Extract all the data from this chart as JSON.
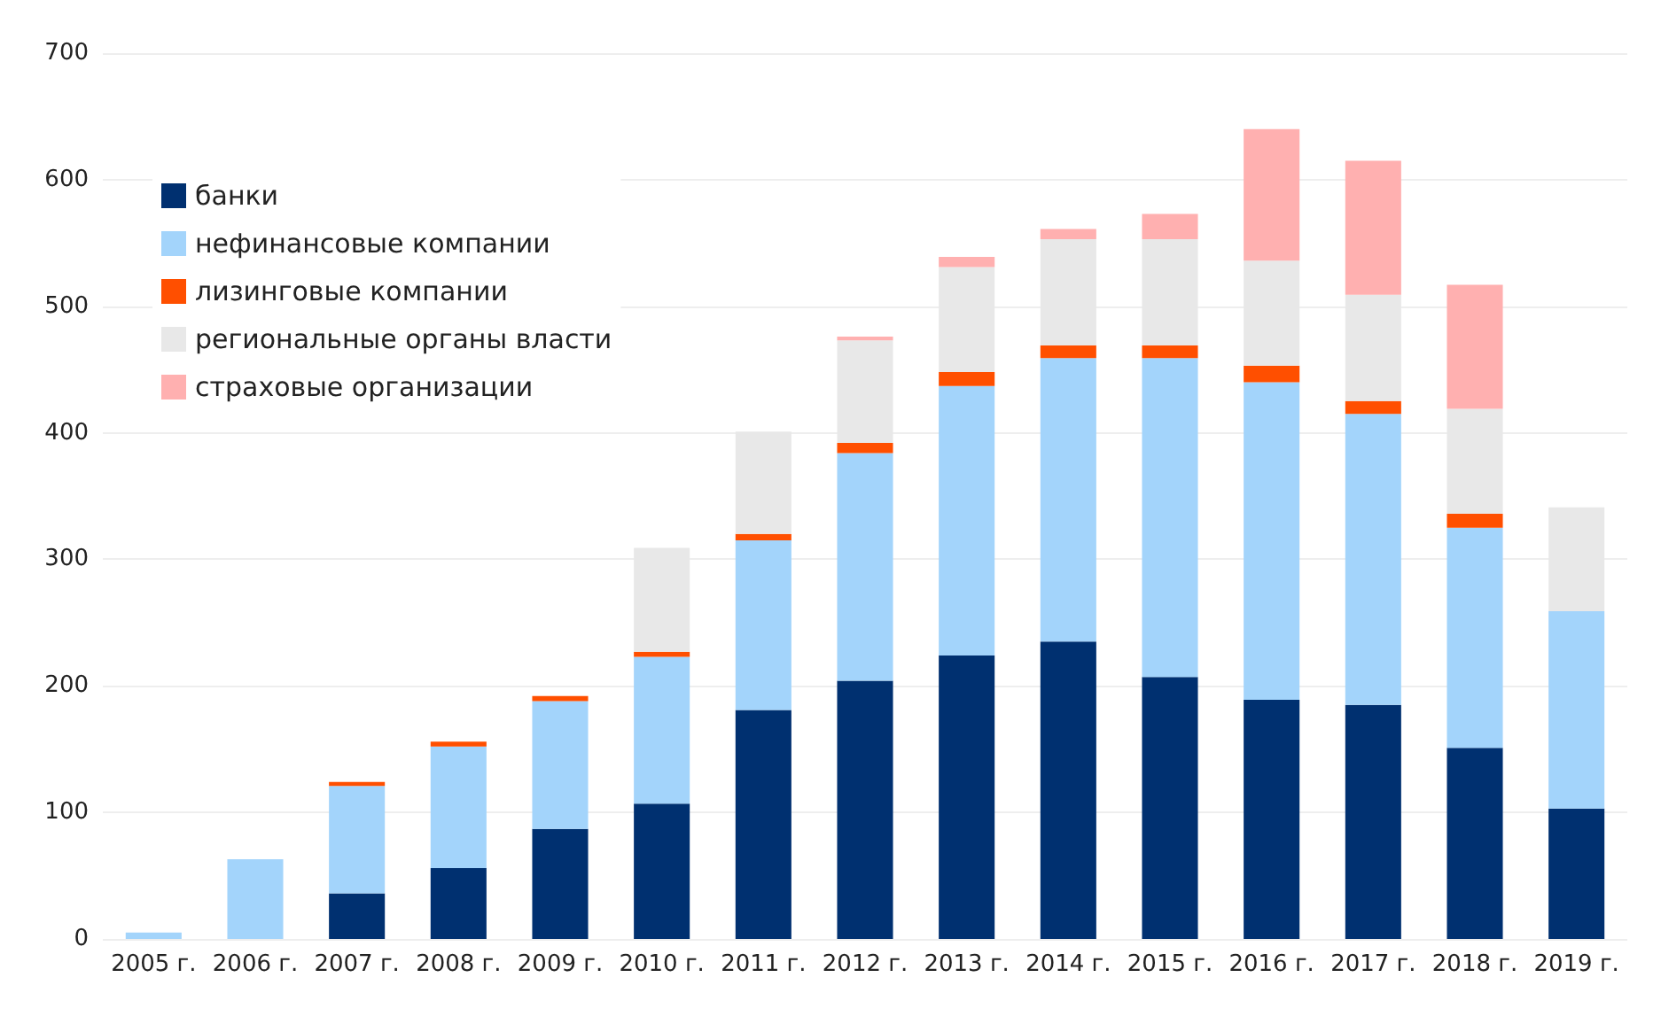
{
  "chart_data": {
    "type": "bar",
    "stacked": true,
    "categories": [
      "2005 г.",
      "2006 г.",
      "2007 г.",
      "2008 г.",
      "2009 г.",
      "2010 г.",
      "2011 г.",
      "2012 г.",
      "2013 г.",
      "2014 г.",
      "2015 г.",
      "2016 г.",
      "2017 г.",
      "2018 г.",
      "2019 г."
    ],
    "series": [
      {
        "name": "банки",
        "color": "#003070",
        "values": [
          null,
          null,
          36,
          56,
          87,
          107,
          181,
          204,
          224,
          235,
          207,
          189,
          185,
          151,
          103
        ]
      },
      {
        "name": "нефинансовые компании",
        "color": "#a3d4fb",
        "values": [
          5,
          63,
          85,
          96,
          101,
          116,
          134,
          180,
          213,
          224,
          252,
          251,
          230,
          174,
          156
        ]
      },
      {
        "name": "лизинговые компании",
        "color": "#ff4f00",
        "values": [
          null,
          null,
          3,
          4,
          4,
          4,
          5,
          8,
          11,
          10,
          10,
          13,
          10,
          11,
          null
        ]
      },
      {
        "name": "региональные органы власти",
        "color": "#e8e8e8",
        "values": [
          null,
          null,
          null,
          null,
          null,
          82,
          81,
          81,
          83,
          84,
          84,
          83,
          84,
          83,
          82
        ]
      },
      {
        "name": "страховые организации",
        "color": "#ffb0b0",
        "values": [
          null,
          null,
          null,
          null,
          null,
          null,
          null,
          3,
          8,
          8,
          20,
          104,
          106,
          98,
          null
        ]
      }
    ],
    "ylim": [
      0,
      700
    ],
    "yticks": [
      0,
      100,
      200,
      300,
      400,
      500,
      600,
      700
    ],
    "grid": "y",
    "legend": "top left"
  }
}
